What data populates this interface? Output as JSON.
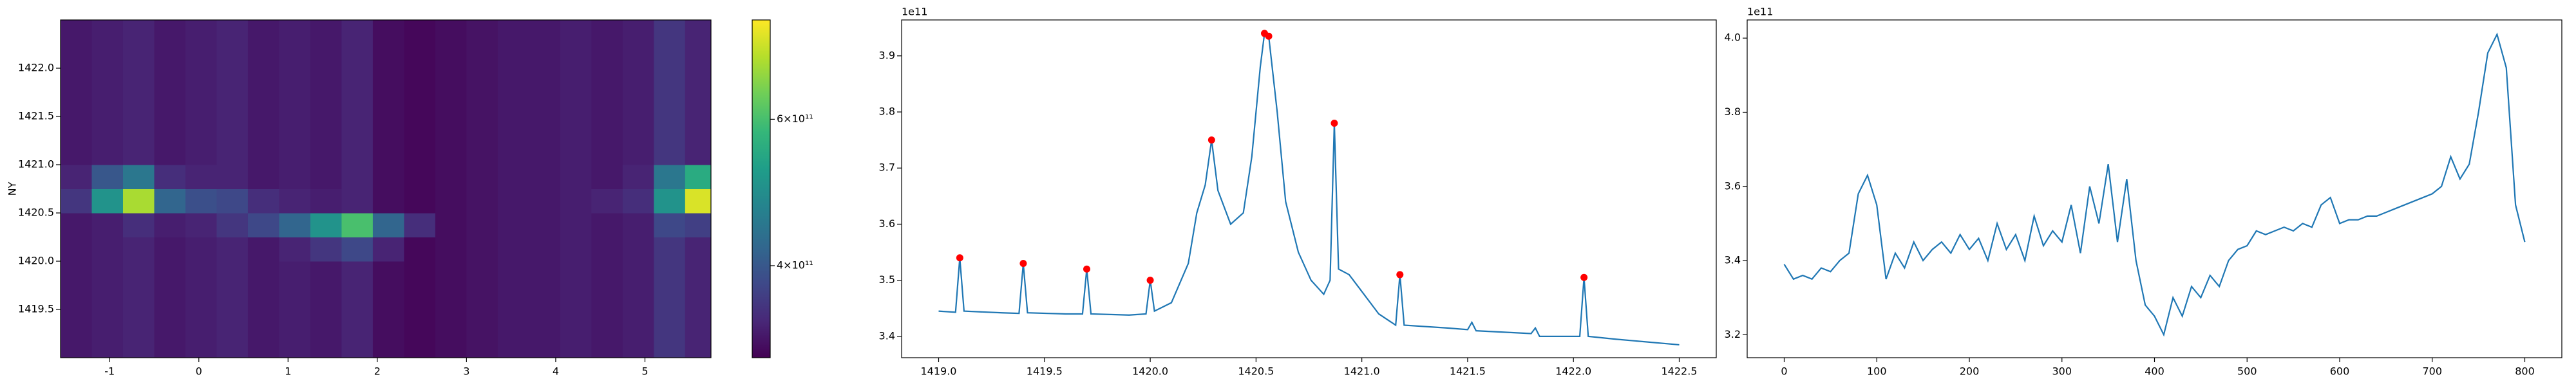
{
  "chart_data": [
    {
      "type": "heatmap",
      "ylabel": "NY",
      "xlim": [
        -1.55,
        5.74
      ],
      "ylim": [
        1419.0,
        1422.5
      ],
      "xticks": [
        -1,
        0,
        1,
        2,
        3,
        4,
        5
      ],
      "yticks": [
        1419.5,
        {
          "value": 1420.0,
          "label": "1420.0"
        },
        1420.5,
        {
          "value": 1421.0,
          "label": "1421.0"
        },
        1421.5,
        {
          "value": 1422.0,
          "label": "1422.0"
        }
      ],
      "x_edges": [
        -1.55,
        -1.2,
        -0.85,
        -0.5,
        -0.15,
        0.2,
        0.55,
        0.9,
        1.25,
        1.6,
        1.95,
        2.3,
        2.65,
        3.0,
        3.35,
        3.7,
        4.05,
        4.4,
        4.75,
        5.1,
        5.45,
        5.74
      ],
      "y_edges": [
        1419.0,
        1419.25,
        1419.5,
        1419.75,
        1420.0,
        1420.25,
        1420.5,
        1420.75,
        1421.0,
        1421.25,
        1421.5,
        1421.75,
        1422.0,
        1422.25,
        1422.5
      ],
      "z": [
        [
          330000000000.0,
          335000000000.0,
          340000000000.0,
          330000000000.0,
          335000000000.0,
          340000000000.0,
          330000000000.0,
          335000000000.0,
          330000000000.0,
          340000000000.0,
          320000000000.0,
          315000000000.0,
          320000000000.0,
          325000000000.0,
          330000000000.0,
          330000000000.0,
          335000000000.0,
          330000000000.0,
          335000000000.0,
          360000000000.0,
          340000000000.0
        ],
        [
          330000000000.0,
          335000000000.0,
          340000000000.0,
          330000000000.0,
          335000000000.0,
          340000000000.0,
          330000000000.0,
          335000000000.0,
          330000000000.0,
          340000000000.0,
          320000000000.0,
          315000000000.0,
          320000000000.0,
          325000000000.0,
          330000000000.0,
          330000000000.0,
          335000000000.0,
          330000000000.0,
          335000000000.0,
          360000000000.0,
          340000000000.0
        ],
        [
          330000000000.0,
          335000000000.0,
          340000000000.0,
          330000000000.0,
          335000000000.0,
          340000000000.0,
          330000000000.0,
          335000000000.0,
          330000000000.0,
          340000000000.0,
          320000000000.0,
          315000000000.0,
          320000000000.0,
          325000000000.0,
          330000000000.0,
          330000000000.0,
          335000000000.0,
          330000000000.0,
          335000000000.0,
          360000000000.0,
          340000000000.0
        ],
        [
          330000000000.0,
          335000000000.0,
          340000000000.0,
          330000000000.0,
          335000000000.0,
          340000000000.0,
          330000000000.0,
          335000000000.0,
          330000000000.0,
          340000000000.0,
          320000000000.0,
          315000000000.0,
          320000000000.0,
          325000000000.0,
          330000000000.0,
          330000000000.0,
          335000000000.0,
          330000000000.0,
          335000000000.0,
          360000000000.0,
          340000000000.0
        ],
        [
          330000000000.0,
          335000000000.0,
          340000000000.0,
          330000000000.0,
          335000000000.0,
          340000000000.0,
          330000000000.0,
          340000000000.0,
          360000000000.0,
          380000000000.0,
          340000000000.0,
          315000000000.0,
          320000000000.0,
          325000000000.0,
          330000000000.0,
          330000000000.0,
          335000000000.0,
          330000000000.0,
          335000000000.0,
          360000000000.0,
          340000000000.0
        ],
        [
          330000000000.0,
          335000000000.0,
          350000000000.0,
          335000000000.0,
          340000000000.0,
          360000000000.0,
          380000000000.0,
          420000000000.0,
          500000000000.0,
          600000000000.0,
          420000000000.0,
          350000000000.0,
          320000000000.0,
          325000000000.0,
          330000000000.0,
          330000000000.0,
          335000000000.0,
          330000000000.0,
          335000000000.0,
          380000000000.0,
          370000000000.0
        ],
        [
          360000000000.0,
          500000000000.0,
          700000000000.0,
          420000000000.0,
          390000000000.0,
          380000000000.0,
          350000000000.0,
          340000000000.0,
          335000000000.0,
          340000000000.0,
          320000000000.0,
          315000000000.0,
          320000000000.0,
          325000000000.0,
          330000000000.0,
          330000000000.0,
          335000000000.0,
          340000000000.0,
          350000000000.0,
          500000000000.0,
          750000000000.0
        ],
        [
          340000000000.0,
          400000000000.0,
          450000000000.0,
          350000000000.0,
          340000000000.0,
          340000000000.0,
          330000000000.0,
          335000000000.0,
          330000000000.0,
          340000000000.0,
          320000000000.0,
          315000000000.0,
          320000000000.0,
          325000000000.0,
          330000000000.0,
          330000000000.0,
          335000000000.0,
          330000000000.0,
          340000000000.0,
          450000000000.0,
          550000000000.0
        ],
        [
          330000000000.0,
          335000000000.0,
          340000000000.0,
          330000000000.0,
          335000000000.0,
          340000000000.0,
          330000000000.0,
          335000000000.0,
          330000000000.0,
          340000000000.0,
          320000000000.0,
          315000000000.0,
          320000000000.0,
          325000000000.0,
          330000000000.0,
          330000000000.0,
          335000000000.0,
          330000000000.0,
          335000000000.0,
          360000000000.0,
          340000000000.0
        ],
        [
          330000000000.0,
          335000000000.0,
          340000000000.0,
          330000000000.0,
          335000000000.0,
          340000000000.0,
          330000000000.0,
          335000000000.0,
          330000000000.0,
          340000000000.0,
          320000000000.0,
          315000000000.0,
          320000000000.0,
          325000000000.0,
          330000000000.0,
          330000000000.0,
          335000000000.0,
          330000000000.0,
          335000000000.0,
          360000000000.0,
          340000000000.0
        ],
        [
          330000000000.0,
          335000000000.0,
          340000000000.0,
          330000000000.0,
          335000000000.0,
          340000000000.0,
          330000000000.0,
          335000000000.0,
          330000000000.0,
          340000000000.0,
          320000000000.0,
          315000000000.0,
          320000000000.0,
          325000000000.0,
          330000000000.0,
          330000000000.0,
          335000000000.0,
          330000000000.0,
          335000000000.0,
          360000000000.0,
          340000000000.0
        ],
        [
          330000000000.0,
          335000000000.0,
          340000000000.0,
          330000000000.0,
          335000000000.0,
          340000000000.0,
          330000000000.0,
          335000000000.0,
          330000000000.0,
          340000000000.0,
          320000000000.0,
          315000000000.0,
          320000000000.0,
          325000000000.0,
          330000000000.0,
          330000000000.0,
          335000000000.0,
          330000000000.0,
          335000000000.0,
          360000000000.0,
          340000000000.0
        ],
        [
          330000000000.0,
          335000000000.0,
          340000000000.0,
          330000000000.0,
          335000000000.0,
          340000000000.0,
          330000000000.0,
          335000000000.0,
          330000000000.0,
          340000000000.0,
          320000000000.0,
          315000000000.0,
          320000000000.0,
          325000000000.0,
          330000000000.0,
          330000000000.0,
          335000000000.0,
          330000000000.0,
          335000000000.0,
          360000000000.0,
          340000000000.0
        ],
        [
          330000000000.0,
          335000000000.0,
          340000000000.0,
          330000000000.0,
          335000000000.0,
          340000000000.0,
          330000000000.0,
          335000000000.0,
          330000000000.0,
          340000000000.0,
          320000000000.0,
          315000000000.0,
          320000000000.0,
          325000000000.0,
          330000000000.0,
          330000000000.0,
          335000000000.0,
          330000000000.0,
          335000000000.0,
          360000000000.0,
          340000000000.0
        ]
      ],
      "colorbar": {
        "lim": [
          310000000000.0,
          790000000000.0
        ],
        "log": true,
        "ticks": [
          {
            "value": 400000000000.0,
            "label": "4×10¹¹"
          },
          {
            "value": 600000000000.0,
            "label": "6×10¹¹"
          }
        ]
      }
    },
    {
      "type": "line",
      "offset_text": "1e11",
      "xlim": [
        1418.825,
        1422.675
      ],
      "ylim": [
        3.362,
        3.964
      ],
      "xticks": [
        {
          "value": 1419.0,
          "label": "1419.0"
        },
        1419.5,
        {
          "value": 1420.0,
          "label": "1420.0"
        },
        1420.5,
        {
          "value": 1421.0,
          "label": "1421.0"
        },
        1421.5,
        {
          "value": 1422.0,
          "label": "1422.0"
        },
        1422.5
      ],
      "yticks": [
        3.4,
        3.5,
        3.6,
        3.7,
        3.8,
        3.9
      ],
      "series": [
        {
          "color": "#1f77b4",
          "x": [
            1419.0,
            1419.08,
            1419.1,
            1419.12,
            1419.3,
            1419.38,
            1419.4,
            1419.42,
            1419.6,
            1419.68,
            1419.7,
            1419.72,
            1419.9,
            1419.98,
            1420.0,
            1420.02,
            1420.1,
            1420.18,
            1420.22,
            1420.26,
            1420.29,
            1420.32,
            1420.38,
            1420.44,
            1420.48,
            1420.52,
            1420.54,
            1420.56,
            1420.6,
            1420.64,
            1420.7,
            1420.76,
            1420.82,
            1420.85,
            1420.87,
            1420.89,
            1420.94,
            1421.0,
            1421.08,
            1421.16,
            1421.18,
            1421.2,
            1421.4,
            1421.5,
            1421.52,
            1421.54,
            1421.8,
            1421.82,
            1421.84,
            1422.03,
            1422.05,
            1422.07,
            1422.2,
            1422.5
          ],
          "values": [
            3.445,
            3.443,
            3.54,
            3.445,
            3.442,
            3.441,
            3.53,
            3.442,
            3.44,
            3.44,
            3.52,
            3.44,
            3.438,
            3.44,
            3.5,
            3.445,
            3.46,
            3.53,
            3.62,
            3.67,
            3.75,
            3.66,
            3.6,
            3.62,
            3.72,
            3.88,
            3.94,
            3.935,
            3.8,
            3.64,
            3.55,
            3.5,
            3.475,
            3.5,
            3.78,
            3.52,
            3.51,
            3.48,
            3.44,
            3.42,
            3.51,
            3.42,
            3.415,
            3.412,
            3.425,
            3.41,
            3.405,
            3.415,
            3.4,
            3.4,
            3.505,
            3.4,
            3.395,
            3.385
          ]
        }
      ],
      "peaks": {
        "color": "#ff0000",
        "x": [
          1419.1,
          1419.4,
          1419.7,
          1420.0,
          1420.29,
          1420.54,
          1420.56,
          1420.87,
          1421.18,
          1422.05
        ],
        "values": [
          3.54,
          3.53,
          3.52,
          3.5,
          3.75,
          3.94,
          3.935,
          3.78,
          3.51,
          3.505
        ]
      }
    },
    {
      "type": "line",
      "offset_text": "1e11",
      "xlim": [
        -40,
        840
      ],
      "ylim": [
        3.138,
        4.049
      ],
      "xticks": [
        0,
        100,
        200,
        300,
        400,
        500,
        600,
        700,
        800
      ],
      "yticks": [
        3.2,
        3.4,
        3.6,
        3.8,
        {
          "value": 4.0,
          "label": "4.0"
        }
      ],
      "series": [
        {
          "color": "#1f77b4",
          "x": [
            0,
            10,
            20,
            30,
            40,
            50,
            60,
            70,
            80,
            90,
            100,
            110,
            120,
            130,
            140,
            150,
            160,
            170,
            180,
            190,
            200,
            210,
            220,
            230,
            240,
            250,
            260,
            270,
            280,
            290,
            300,
            310,
            320,
            330,
            340,
            350,
            360,
            370,
            380,
            390,
            400,
            410,
            420,
            430,
            440,
            450,
            460,
            470,
            480,
            490,
            500,
            510,
            520,
            530,
            540,
            550,
            560,
            570,
            580,
            590,
            600,
            610,
            620,
            630,
            640,
            650,
            660,
            670,
            680,
            690,
            700,
            710,
            720,
            730,
            740,
            750,
            760,
            770,
            780,
            790,
            800
          ],
          "values": [
            3.39,
            3.35,
            3.36,
            3.35,
            3.38,
            3.37,
            3.4,
            3.42,
            3.58,
            3.63,
            3.55,
            3.35,
            3.42,
            3.38,
            3.45,
            3.4,
            3.43,
            3.45,
            3.42,
            3.47,
            3.43,
            3.46,
            3.4,
            3.5,
            3.43,
            3.47,
            3.4,
            3.52,
            3.44,
            3.48,
            3.45,
            3.55,
            3.42,
            3.6,
            3.5,
            3.66,
            3.45,
            3.62,
            3.4,
            3.28,
            3.25,
            3.2,
            3.3,
            3.25,
            3.33,
            3.3,
            3.36,
            3.33,
            3.4,
            3.43,
            3.44,
            3.48,
            3.47,
            3.48,
            3.49,
            3.48,
            3.5,
            3.49,
            3.55,
            3.57,
            3.5,
            3.51,
            3.51,
            3.52,
            3.52,
            3.53,
            3.54,
            3.55,
            3.56,
            3.57,
            3.58,
            3.6,
            3.68,
            3.62,
            3.66,
            3.8,
            3.96,
            4.01,
            3.92,
            3.55,
            3.45
          ]
        }
      ]
    }
  ]
}
